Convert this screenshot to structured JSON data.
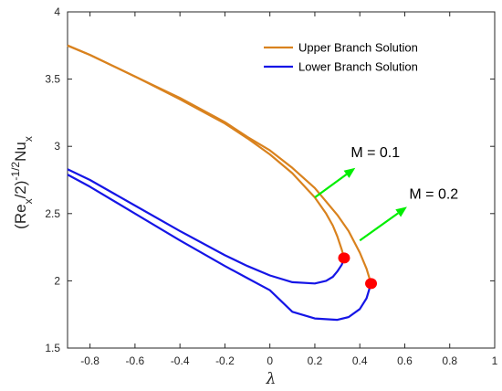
{
  "chart_data": {
    "type": "line",
    "xlabel": "λ",
    "ylabel": {
      "base": "(Re",
      "sub1": "x",
      "mid": "/2)",
      "sup": "-1/2",
      "base2": "Nu",
      "sub2": "x"
    },
    "xlim": [
      -0.9,
      1
    ],
    "ylim": [
      1.5,
      4
    ],
    "xticks": [
      "-0.8",
      "-0.6",
      "-0.4",
      "-0.2",
      "0",
      "0.2",
      "0.4",
      "0.6",
      "0.8",
      "1"
    ],
    "xtick_values": [
      -0.8,
      -0.6,
      -0.4,
      -0.2,
      0,
      0.2,
      0.4,
      0.6,
      0.8,
      1
    ],
    "yticks": [
      "1.5",
      "2",
      "2.5",
      "3",
      "3.5",
      "4"
    ],
    "ytick_values": [
      1.5,
      2,
      2.5,
      3,
      3.5,
      4
    ],
    "grid": false,
    "legend_position": "top-right",
    "legend": [
      {
        "label": "Upper Branch Solution",
        "color": "#D9821E"
      },
      {
        "label": "Lower Branch Solution",
        "color": "#1515E6"
      }
    ],
    "series": [
      {
        "branch": "upper",
        "case": "M = 0.1",
        "color": "#D9821E",
        "x": [
          -0.9,
          -0.8,
          -0.6,
          -0.4,
          -0.2,
          -0.1,
          0.0,
          0.1,
          0.2,
          0.25,
          0.28,
          0.3,
          0.32,
          0.33
        ],
        "y": [
          3.75,
          3.68,
          3.52,
          3.35,
          3.17,
          3.06,
          2.94,
          2.8,
          2.62,
          2.5,
          2.41,
          2.33,
          2.23,
          2.17
        ]
      },
      {
        "branch": "upper",
        "case": "M = 0.2",
        "color": "#D9821E",
        "x": [
          -0.9,
          -0.8,
          -0.6,
          -0.4,
          -0.2,
          -0.1,
          0.0,
          0.1,
          0.2,
          0.3,
          0.35,
          0.4,
          0.43,
          0.45
        ],
        "y": [
          3.75,
          3.68,
          3.52,
          3.36,
          3.18,
          3.07,
          2.97,
          2.84,
          2.69,
          2.49,
          2.37,
          2.21,
          2.09,
          1.98
        ]
      },
      {
        "branch": "lower",
        "case": "M = 0.1",
        "color": "#1515E6",
        "x": [
          -0.9,
          -0.8,
          -0.6,
          -0.4,
          -0.2,
          -0.1,
          0.0,
          0.1,
          0.2,
          0.25,
          0.28,
          0.3,
          0.32,
          0.33
        ],
        "y": [
          2.83,
          2.75,
          2.56,
          2.37,
          2.19,
          2.11,
          2.04,
          1.99,
          1.98,
          2.0,
          2.03,
          2.07,
          2.12,
          2.17
        ]
      },
      {
        "branch": "lower",
        "case": "M = 0.2",
        "color": "#1515E6",
        "x": [
          -0.9,
          -0.8,
          -0.6,
          -0.4,
          -0.2,
          -0.1,
          0.0,
          0.1,
          0.2,
          0.3,
          0.35,
          0.4,
          0.43,
          0.45
        ],
        "y": [
          2.79,
          2.7,
          2.5,
          2.3,
          2.11,
          2.02,
          1.93,
          1.77,
          1.72,
          1.71,
          1.73,
          1.79,
          1.87,
          1.98
        ]
      }
    ],
    "critical_points": [
      {
        "case": "M = 0.1",
        "x": 0.33,
        "y": 2.17,
        "color": "#FF0000"
      },
      {
        "case": "M = 0.2",
        "x": 0.45,
        "y": 1.98,
        "color": "#FF0000"
      }
    ],
    "annotations": [
      {
        "text": "M = 0.1",
        "arrow_from": [
          0.2,
          2.62
        ],
        "arrow_to": [
          0.38,
          2.84
        ],
        "text_at": [
          0.36,
          2.92
        ],
        "color": "#00EE00"
      },
      {
        "text": "M = 0.2",
        "arrow_from": [
          0.4,
          2.3
        ],
        "arrow_to": [
          0.61,
          2.55
        ],
        "text_at": [
          0.62,
          2.61
        ],
        "color": "#00EE00"
      }
    ]
  }
}
